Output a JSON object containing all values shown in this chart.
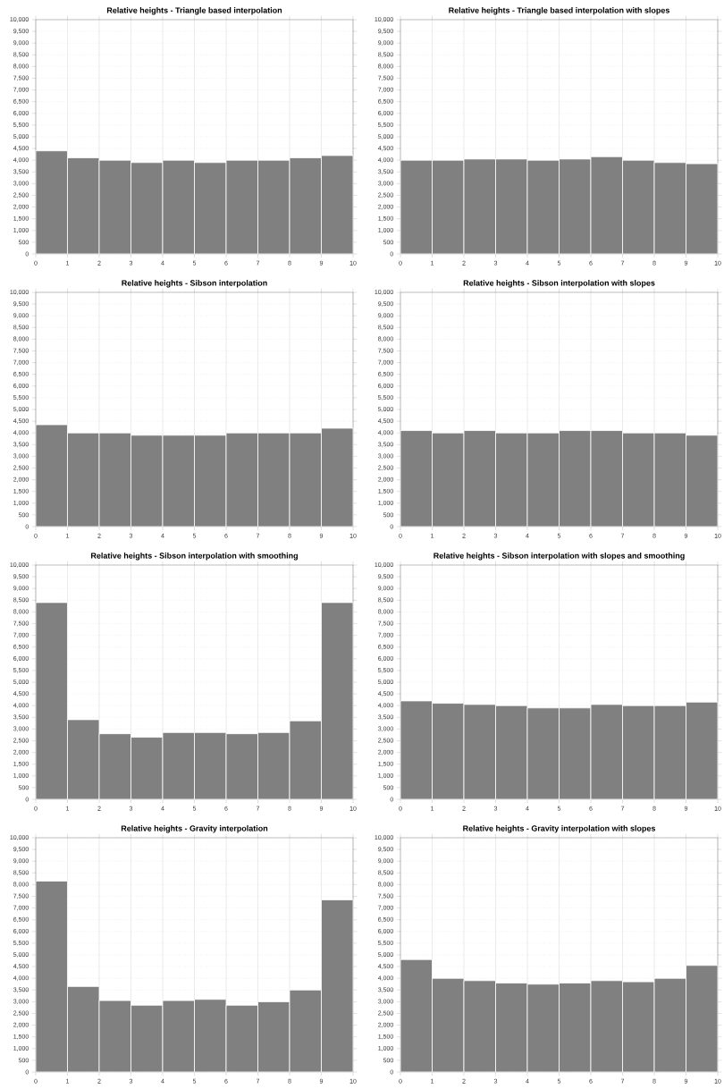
{
  "chart_data": [
    {
      "type": "histogram",
      "title": "Relative heights - Triangle based interpolation",
      "bins": [
        0,
        1,
        2,
        3,
        4,
        5,
        6,
        7,
        8,
        9,
        10
      ],
      "values": [
        4400,
        4100,
        4000,
        3900,
        4000,
        3900,
        4000,
        4000,
        4100,
        4200
      ],
      "color": "#808080",
      "xlim": [
        0,
        10
      ],
      "xticks": [
        0,
        1,
        2,
        3,
        4,
        5,
        6,
        7,
        8,
        9,
        10
      ],
      "ylim": [
        0,
        10000
      ],
      "yticks": [
        {
          "value": 0,
          "label": "0"
        },
        {
          "value": 500,
          "label": "500"
        },
        {
          "value": 1000,
          "label": "1,000"
        },
        {
          "value": 1500,
          "label": "1,500"
        },
        {
          "value": 2000,
          "label": "2,000"
        },
        {
          "value": 2500,
          "label": "2,500"
        },
        {
          "value": 3000,
          "label": "3,000"
        },
        {
          "value": 3500,
          "label": "3,500"
        },
        {
          "value": 4000,
          "label": "4,000"
        },
        {
          "value": 4500,
          "label": "4,500"
        },
        {
          "value": 5000,
          "label": "5,000"
        },
        {
          "value": 5500,
          "label": "5,500"
        },
        {
          "value": 6000,
          "label": "6,000"
        },
        {
          "value": 6500,
          "label": "6,500"
        },
        {
          "value": 7000,
          "label": "7,000"
        },
        {
          "value": 7500,
          "label": "7,500"
        },
        {
          "value": 8000,
          "label": "8,000"
        },
        {
          "value": 8500,
          "label": "8,500"
        },
        {
          "value": 9000,
          "label": "9,000"
        },
        {
          "value": 9500,
          "label": "9,500"
        },
        {
          "value": 10000,
          "label": "10,000"
        }
      ],
      "grid": true
    },
    {
      "type": "histogram",
      "title": "Relative heights - Triangle based interpolation with slopes",
      "bins": [
        0,
        1,
        2,
        3,
        4,
        5,
        6,
        7,
        8,
        9,
        10
      ],
      "values": [
        4000,
        4000,
        4050,
        4050,
        4000,
        4050,
        4150,
        4000,
        3900,
        3850
      ],
      "color": "#808080",
      "xlim": [
        0,
        10
      ],
      "xticks": [
        0,
        1,
        2,
        3,
        4,
        5,
        6,
        7,
        8,
        9,
        10
      ],
      "ylim": [
        0,
        10000
      ],
      "yticks": [
        {
          "value": 0,
          "label": "0"
        },
        {
          "value": 500,
          "label": "500"
        },
        {
          "value": 1000,
          "label": "1,000"
        },
        {
          "value": 1500,
          "label": "1,500"
        },
        {
          "value": 2000,
          "label": "2,000"
        },
        {
          "value": 2500,
          "label": "2,500"
        },
        {
          "value": 3000,
          "label": "3,000"
        },
        {
          "value": 3500,
          "label": "3,500"
        },
        {
          "value": 4000,
          "label": "4,000"
        },
        {
          "value": 4500,
          "label": "4,500"
        },
        {
          "value": 5000,
          "label": "5,000"
        },
        {
          "value": 5500,
          "label": "5,500"
        },
        {
          "value": 6000,
          "label": "6,000"
        },
        {
          "value": 6500,
          "label": "6,500"
        },
        {
          "value": 7000,
          "label": "7,000"
        },
        {
          "value": 7500,
          "label": "7,500"
        },
        {
          "value": 8000,
          "label": "8,000"
        },
        {
          "value": 8500,
          "label": "8,500"
        },
        {
          "value": 9000,
          "label": "9,000"
        },
        {
          "value": 9500,
          "label": "9,500"
        },
        {
          "value": 10000,
          "label": "10,000"
        }
      ],
      "grid": true
    },
    {
      "type": "histogram",
      "title": "Relative heights - Sibson interpolation",
      "bins": [
        0,
        1,
        2,
        3,
        4,
        5,
        6,
        7,
        8,
        9,
        10
      ],
      "values": [
        4350,
        4000,
        4000,
        3900,
        3900,
        3900,
        4000,
        4000,
        4000,
        4200
      ],
      "color": "#808080",
      "xlim": [
        0,
        10
      ],
      "xticks": [
        0,
        1,
        2,
        3,
        4,
        5,
        6,
        7,
        8,
        9,
        10
      ],
      "ylim": [
        0,
        10000
      ],
      "yticks": [
        {
          "value": 0,
          "label": "0"
        },
        {
          "value": 500,
          "label": "500"
        },
        {
          "value": 1000,
          "label": "1,000"
        },
        {
          "value": 1500,
          "label": "1,500"
        },
        {
          "value": 2000,
          "label": "2,000"
        },
        {
          "value": 2500,
          "label": "2,500"
        },
        {
          "value": 3000,
          "label": "3,000"
        },
        {
          "value": 3500,
          "label": "3,500"
        },
        {
          "value": 4000,
          "label": "4,000"
        },
        {
          "value": 4500,
          "label": "4,500"
        },
        {
          "value": 5000,
          "label": "5,000"
        },
        {
          "value": 5500,
          "label": "5,500"
        },
        {
          "value": 6000,
          "label": "6,000"
        },
        {
          "value": 6500,
          "label": "6,500"
        },
        {
          "value": 7000,
          "label": "7,000"
        },
        {
          "value": 7500,
          "label": "7,500"
        },
        {
          "value": 8000,
          "label": "8,000"
        },
        {
          "value": 8500,
          "label": "8,500"
        },
        {
          "value": 9000,
          "label": "9,000"
        },
        {
          "value": 9500,
          "label": "9,500"
        },
        {
          "value": 10000,
          "label": "10,000"
        }
      ],
      "grid": true
    },
    {
      "type": "histogram",
      "title": "Relative heights - Sibson interpolation with slopes",
      "bins": [
        0,
        1,
        2,
        3,
        4,
        5,
        6,
        7,
        8,
        9,
        10
      ],
      "values": [
        4100,
        4000,
        4100,
        4000,
        4000,
        4100,
        4100,
        4000,
        4000,
        3900
      ],
      "color": "#808080",
      "xlim": [
        0,
        10
      ],
      "xticks": [
        0,
        1,
        2,
        3,
        4,
        5,
        6,
        7,
        8,
        9,
        10
      ],
      "ylim": [
        0,
        10000
      ],
      "yticks": [
        {
          "value": 0,
          "label": "0"
        },
        {
          "value": 500,
          "label": "500"
        },
        {
          "value": 1000,
          "label": "1,000"
        },
        {
          "value": 1500,
          "label": "1,500"
        },
        {
          "value": 2000,
          "label": "2,000"
        },
        {
          "value": 2500,
          "label": "2,500"
        },
        {
          "value": 3000,
          "label": "3,000"
        },
        {
          "value": 3500,
          "label": "3,500"
        },
        {
          "value": 4000,
          "label": "4,000"
        },
        {
          "value": 4500,
          "label": "4,500"
        },
        {
          "value": 5000,
          "label": "5,000"
        },
        {
          "value": 5500,
          "label": "5,500"
        },
        {
          "value": 6000,
          "label": "6,000"
        },
        {
          "value": 6500,
          "label": "6,500"
        },
        {
          "value": 7000,
          "label": "7,000"
        },
        {
          "value": 7500,
          "label": "7,500"
        },
        {
          "value": 8000,
          "label": "8,000"
        },
        {
          "value": 8500,
          "label": "8,500"
        },
        {
          "value": 9000,
          "label": "9,000"
        },
        {
          "value": 9500,
          "label": "9,500"
        },
        {
          "value": 10000,
          "label": "10,000"
        }
      ],
      "grid": true
    },
    {
      "type": "histogram",
      "title": "Relative heights - Sibson interpolation with smoothing",
      "bins": [
        0,
        1,
        2,
        3,
        4,
        5,
        6,
        7,
        8,
        9,
        10
      ],
      "values": [
        8400,
        3400,
        2800,
        2650,
        2850,
        2850,
        2800,
        2850,
        3350,
        8400
      ],
      "color": "#808080",
      "xlim": [
        0,
        10
      ],
      "xticks": [
        0,
        1,
        2,
        3,
        4,
        5,
        6,
        7,
        8,
        9,
        10
      ],
      "ylim": [
        0,
        10000
      ],
      "yticks": [
        {
          "value": 0,
          "label": "0"
        },
        {
          "value": 500,
          "label": "500"
        },
        {
          "value": 1000,
          "label": "1,000"
        },
        {
          "value": 1500,
          "label": "1,500"
        },
        {
          "value": 2000,
          "label": "2,000"
        },
        {
          "value": 2500,
          "label": "2,500"
        },
        {
          "value": 3000,
          "label": "3,000"
        },
        {
          "value": 3500,
          "label": "3,500"
        },
        {
          "value": 4000,
          "label": "4,000"
        },
        {
          "value": 4500,
          "label": "4,500"
        },
        {
          "value": 5000,
          "label": "5,000"
        },
        {
          "value": 5500,
          "label": "5,500"
        },
        {
          "value": 6000,
          "label": "6,000"
        },
        {
          "value": 6500,
          "label": "6,500"
        },
        {
          "value": 7000,
          "label": "7,000"
        },
        {
          "value": 7500,
          "label": "7,500"
        },
        {
          "value": 8000,
          "label": "8,000"
        },
        {
          "value": 8500,
          "label": "8,500"
        },
        {
          "value": 9000,
          "label": "9,000"
        },
        {
          "value": 9500,
          "label": "9,500"
        },
        {
          "value": 10000,
          "label": "10,000"
        }
      ],
      "grid": true
    },
    {
      "type": "histogram",
      "title": "Relative heights - Sibson interpolation with slopes and smoothing",
      "bins": [
        0,
        1,
        2,
        3,
        4,
        5,
        6,
        7,
        8,
        9,
        10
      ],
      "values": [
        4200,
        4100,
        4050,
        4000,
        3900,
        3900,
        4050,
        4000,
        4000,
        4150
      ],
      "color": "#808080",
      "xlim": [
        0,
        10
      ],
      "xticks": [
        0,
        1,
        2,
        3,
        4,
        5,
        6,
        7,
        8,
        9,
        10
      ],
      "ylim": [
        0,
        10000
      ],
      "yticks": [
        {
          "value": 0,
          "label": "0"
        },
        {
          "value": 500,
          "label": "500"
        },
        {
          "value": 1000,
          "label": "1,000"
        },
        {
          "value": 1500,
          "label": "1,500"
        },
        {
          "value": 2000,
          "label": "2,000"
        },
        {
          "value": 2500,
          "label": "2,500"
        },
        {
          "value": 3000,
          "label": "3,000"
        },
        {
          "value": 3500,
          "label": "3,500"
        },
        {
          "value": 4000,
          "label": "4,000"
        },
        {
          "value": 4500,
          "label": "4,500"
        },
        {
          "value": 5000,
          "label": "5,000"
        },
        {
          "value": 5500,
          "label": "5,500"
        },
        {
          "value": 6000,
          "label": "6,000"
        },
        {
          "value": 6500,
          "label": "6,500"
        },
        {
          "value": 7000,
          "label": "7,000"
        },
        {
          "value": 7500,
          "label": "7,500"
        },
        {
          "value": 8000,
          "label": "8,000"
        },
        {
          "value": 8500,
          "label": "8,500"
        },
        {
          "value": 9000,
          "label": "9,000"
        },
        {
          "value": 9500,
          "label": "9,500"
        },
        {
          "value": 10000,
          "label": "10,000"
        }
      ],
      "grid": true
    },
    {
      "type": "histogram",
      "title": "Relative heights - Gravity interpolation",
      "bins": [
        0,
        1,
        2,
        3,
        4,
        5,
        6,
        7,
        8,
        9,
        10
      ],
      "values": [
        8150,
        3650,
        3050,
        2850,
        3050,
        3100,
        2850,
        3000,
        3500,
        7350
      ],
      "color": "#808080",
      "xlim": [
        0,
        10
      ],
      "xticks": [
        0,
        1,
        2,
        3,
        4,
        5,
        6,
        7,
        8,
        9,
        10
      ],
      "ylim": [
        0,
        10000
      ],
      "yticks": [
        {
          "value": 0,
          "label": "0"
        },
        {
          "value": 500,
          "label": "500"
        },
        {
          "value": 1000,
          "label": "1,000"
        },
        {
          "value": 1500,
          "label": "1,500"
        },
        {
          "value": 2000,
          "label": "2,000"
        },
        {
          "value": 2500,
          "label": "2,500"
        },
        {
          "value": 3000,
          "label": "3,000"
        },
        {
          "value": 3500,
          "label": "3,500"
        },
        {
          "value": 4000,
          "label": "4,000"
        },
        {
          "value": 4500,
          "label": "4,500"
        },
        {
          "value": 5000,
          "label": "5,000"
        },
        {
          "value": 5500,
          "label": "5,500"
        },
        {
          "value": 6000,
          "label": "6,000"
        },
        {
          "value": 6500,
          "label": "6,500"
        },
        {
          "value": 7000,
          "label": "7,000"
        },
        {
          "value": 7500,
          "label": "7,500"
        },
        {
          "value": 8000,
          "label": "8,000"
        },
        {
          "value": 8500,
          "label": "8,500"
        },
        {
          "value": 9000,
          "label": "9,000"
        },
        {
          "value": 9500,
          "label": "9,500"
        },
        {
          "value": 10000,
          "label": "10,000"
        }
      ],
      "grid": true
    },
    {
      "type": "histogram",
      "title": "Relative heights - Gravity interpolation with slopes",
      "bins": [
        0,
        1,
        2,
        3,
        4,
        5,
        6,
        7,
        8,
        9,
        10
      ],
      "values": [
        4800,
        4000,
        3900,
        3800,
        3750,
        3800,
        3900,
        3850,
        4000,
        4550
      ],
      "color": "#808080",
      "xlim": [
        0,
        10
      ],
      "xticks": [
        0,
        1,
        2,
        3,
        4,
        5,
        6,
        7,
        8,
        9,
        10
      ],
      "ylim": [
        0,
        10000
      ],
      "yticks": [
        {
          "value": 0,
          "label": "0"
        },
        {
          "value": 500,
          "label": "500"
        },
        {
          "value": 1000,
          "label": "1,000"
        },
        {
          "value": 1500,
          "label": "1,500"
        },
        {
          "value": 2000,
          "label": "2,000"
        },
        {
          "value": 2500,
          "label": "2,500"
        },
        {
          "value": 3000,
          "label": "3,000"
        },
        {
          "value": 3500,
          "label": "3,500"
        },
        {
          "value": 4000,
          "label": "4,000"
        },
        {
          "value": 4500,
          "label": "4,500"
        },
        {
          "value": 5000,
          "label": "5,000"
        },
        {
          "value": 5500,
          "label": "5,500"
        },
        {
          "value": 6000,
          "label": "6,000"
        },
        {
          "value": 6500,
          "label": "6,500"
        },
        {
          "value": 7000,
          "label": "7,000"
        },
        {
          "value": 7500,
          "label": "7,500"
        },
        {
          "value": 8000,
          "label": "8,000"
        },
        {
          "value": 8500,
          "label": "8,500"
        },
        {
          "value": 9000,
          "label": "9,000"
        },
        {
          "value": 9500,
          "label": "9,500"
        },
        {
          "value": 10000,
          "label": "10,000"
        }
      ],
      "grid": true
    }
  ]
}
